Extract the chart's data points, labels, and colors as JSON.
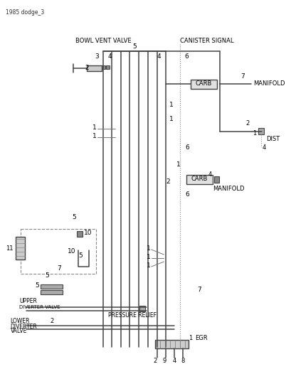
{
  "bg_color": "#ffffff",
  "line_color": "#444444",
  "dashed_color": "#888888",
  "doc_ref": "1985 dodge_3",
  "labels": {
    "bowl_vent_valve": "BOWL VENT VALVE",
    "canister_signal": "CANISTER SIGNAL",
    "manifold_top": "MANIFOLD",
    "manifold_mid": "MANIFOLD",
    "carb_top": "CARB",
    "carb_mid": "CARB",
    "dist": "DIST",
    "upper_diverter": "UPPER\nDIVERTER VALVE",
    "pressure_relief": "PRESSURE RELIEF",
    "lower_diverter": "LOWER\nDIVERTER\nVALVE",
    "egr": "EGR"
  }
}
